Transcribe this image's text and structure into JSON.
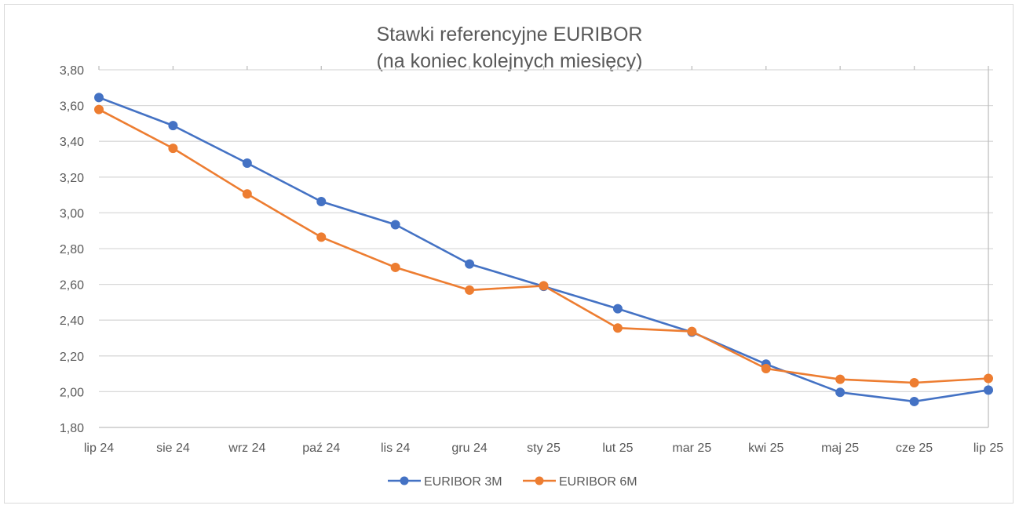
{
  "chart_data": {
    "type": "line",
    "title": "Stawki referencyjne EURIBOR",
    "subtitle": "(na koniec kolejnych miesięcy)",
    "categories": [
      "lip 24",
      "sie 24",
      "wrz 24",
      "paź 24",
      "lis 24",
      "gru 24",
      "sty 25",
      "lut 25",
      "mar 25",
      "kwi 25",
      "maj 25",
      "cze 25",
      "lip 25"
    ],
    "ylim": [
      1.8,
      3.8
    ],
    "yticks": [
      1.8,
      2.0,
      2.2,
      2.4,
      2.6,
      2.8,
      3.0,
      3.2,
      3.4,
      3.6,
      3.8
    ],
    "ytick_labels": [
      "1,80",
      "2,00",
      "2,20",
      "2,40",
      "2,60",
      "2,80",
      "3,00",
      "3,20",
      "3,40",
      "3,60",
      "3,80"
    ],
    "grid": true,
    "legend_position": "bottom",
    "series": [
      {
        "name": "EURIBOR 3M",
        "color": "#4472c4",
        "values": [
          3.645,
          3.488,
          3.278,
          3.063,
          2.934,
          2.714,
          2.589,
          2.464,
          2.333,
          2.154,
          1.996,
          1.945,
          2.009
        ]
      },
      {
        "name": "EURIBOR 6M",
        "color": "#ed7d31",
        "values": [
          3.578,
          3.361,
          3.106,
          2.864,
          2.695,
          2.568,
          2.592,
          2.356,
          2.337,
          2.129,
          2.069,
          2.05,
          2.074
        ]
      }
    ]
  }
}
